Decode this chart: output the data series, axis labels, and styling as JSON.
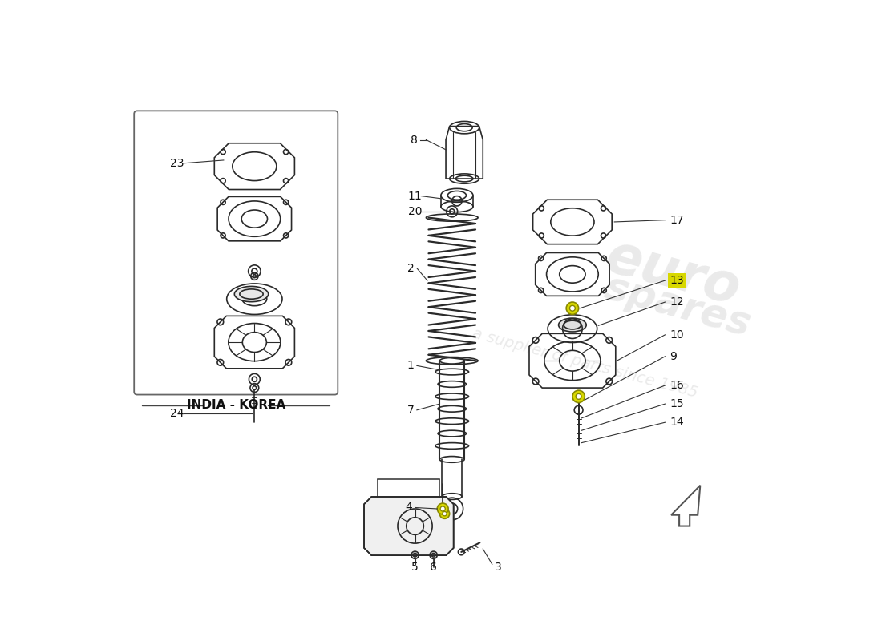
{
  "bg_color": "#ffffff",
  "line_color": "#2a2a2a",
  "label_color": "#111111",
  "leader_color": "#333333",
  "highlight_yellow_bg": "#d8d800",
  "india_korea_label": "INDIA - KOREA",
  "figsize": [
    11.0,
    8.0
  ],
  "dpi": 100,
  "watermark_lines": [
    "euro",
    "spares",
    "a supplier of parts since 1985"
  ]
}
